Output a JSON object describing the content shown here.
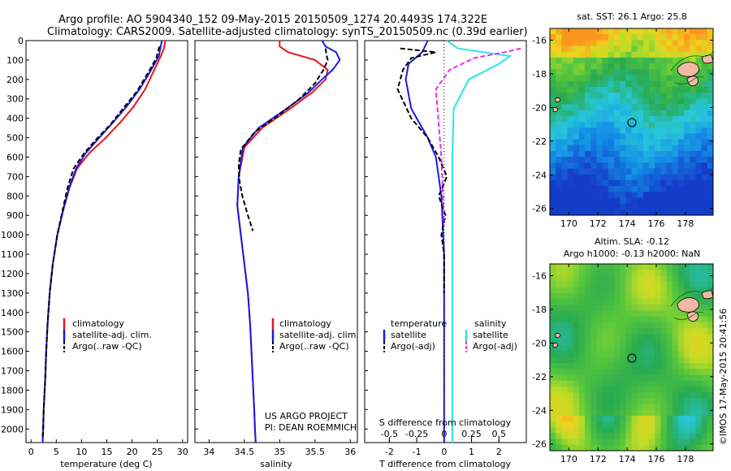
{
  "header": {
    "line1": "Argo profile: AO 5904340_152 09-May-2015 20150509_1274 20.4493S 174.322E",
    "line2": "Climatology: CARS2009. Satellite-adjusted climatology: synTS_20150509.nc (0.39d earlier)"
  },
  "credits": {
    "project": "US ARGO PROJECT",
    "pi": "PI: DEAN ROEMMICH",
    "stamp": "©IMOS 17-May-2015 20:41:56"
  },
  "colors": {
    "climatology": "#e8161b",
    "satellite": "#1a1ae6",
    "argo": "#000000",
    "sal_satellite": "#29e6e6",
    "sal_argo": "#e62ee6"
  },
  "depth_axis": {
    "ylim": [
      2070,
      0
    ],
    "ticks": [
      "0",
      "100",
      "200",
      "300",
      "400",
      "500",
      "600",
      "700",
      "800",
      "900",
      "1000",
      "1100",
      "1200",
      "1300",
      "1400",
      "1500",
      "1600",
      "1700",
      "1800",
      "1900",
      "2000"
    ]
  },
  "chart_data": [
    {
      "type": "line",
      "id": "temperature",
      "xlabel": "temperature (deg C)",
      "xlim": [
        -1,
        31
      ],
      "xticks": [
        "0",
        "5",
        "10",
        "15",
        "20",
        "25",
        "30"
      ],
      "legend": [
        "climatology",
        "satellite-adj. clim.",
        "Argo(..raw -QC)"
      ],
      "series": [
        {
          "name": "climatology",
          "x": [
            26.6,
            26.3,
            25.7,
            24.4,
            22.6,
            20.3,
            17.7,
            14.8,
            11.5,
            9.1,
            7.6,
            6.3,
            5.2,
            4.3,
            3.7,
            3.3,
            3.0,
            2.8,
            2.5,
            2.4,
            2.3
          ],
          "depth": [
            0,
            40,
            80,
            150,
            250,
            340,
            420,
            500,
            580,
            660,
            760,
            880,
            1000,
            1150,
            1300,
            1450,
            1600,
            1750,
            1900,
            2000,
            2070
          ]
        },
        {
          "name": "satellite-adj. clim.",
          "x": [
            25.9,
            25.6,
            25.3,
            23.8,
            21.5,
            18.9,
            16.3,
            13.5,
            10.8,
            8.9,
            7.5,
            6.3,
            5.2,
            4.3,
            3.7,
            3.3,
            3.0,
            2.8,
            2.5,
            2.4,
            2.3
          ],
          "depth": [
            0,
            40,
            80,
            150,
            250,
            340,
            420,
            500,
            580,
            660,
            760,
            880,
            1000,
            1150,
            1300,
            1450,
            1600,
            1750,
            1900,
            2000,
            2070
          ]
        },
        {
          "name": "Argo(..raw -QC)",
          "x": [
            25.4,
            25.2,
            24.8,
            23.3,
            21.0,
            18.2,
            15.8,
            13.2,
            10.5,
            8.4,
            7.2,
            6.2,
            5.2,
            4.3,
            3.7,
            3.3,
            3.0,
            2.8,
            2.5,
            2.4,
            2.3
          ],
          "depth": [
            30,
            50,
            90,
            160,
            260,
            350,
            430,
            500,
            580,
            660,
            760,
            880,
            1000,
            1150,
            1300,
            1450,
            1600,
            1750,
            1900,
            2000,
            2040
          ]
        }
      ]
    },
    {
      "type": "line",
      "id": "salinity",
      "xlabel": "salinity",
      "xlim": [
        33.8,
        36.1
      ],
      "xticks": [
        "34",
        "34.5",
        "35",
        "35.5",
        "36"
      ],
      "legend": [
        "climatology",
        "satellite-adj. clim.",
        "Argo(..raw -QC)"
      ],
      "series": [
        {
          "name": "climatology",
          "x": [
            35.0,
            35.0,
            35.12,
            35.5,
            35.68,
            35.65,
            35.45,
            35.15,
            34.75,
            34.5,
            34.42,
            34.4,
            34.45,
            34.5,
            34.55,
            34.58,
            34.6,
            34.62,
            34.64,
            34.65,
            34.66
          ],
          "depth": [
            0,
            30,
            60,
            100,
            150,
            200,
            270,
            350,
            450,
            550,
            700,
            850,
            1000,
            1150,
            1300,
            1450,
            1600,
            1750,
            1900,
            2000,
            2070
          ]
        },
        {
          "name": "satellite-adj. clim.",
          "x": [
            35.6,
            35.65,
            35.8,
            35.85,
            35.75,
            35.6,
            35.4,
            35.1,
            34.7,
            34.48,
            34.42,
            34.4,
            34.45,
            34.5,
            34.55,
            34.58,
            34.6,
            34.62,
            34.64,
            34.65,
            34.66
          ],
          "depth": [
            0,
            30,
            60,
            100,
            150,
            200,
            270,
            350,
            450,
            550,
            700,
            850,
            1000,
            1150,
            1300,
            1450,
            1600,
            1750,
            1900,
            2000,
            2070
          ]
        },
        {
          "name": "Argo(..raw -QC)",
          "x": [
            35.65,
            35.66,
            35.68,
            35.62,
            35.5,
            35.28,
            35.0,
            34.65,
            34.45,
            34.42,
            34.43,
            34.47,
            34.55,
            34.62
          ],
          "depth": [
            40,
            70,
            100,
            150,
            220,
            300,
            380,
            470,
            560,
            640,
            720,
            800,
            900,
            980
          ]
        }
      ]
    },
    {
      "type": "line",
      "id": "difference",
      "xlabel": "T difference from climatology",
      "xlabel_top": "S difference from climatology",
      "xlim": [
        -2.9,
        3.0
      ],
      "xticks": [
        "-2",
        "-1",
        "0",
        "1",
        "2"
      ],
      "xticks_top": [
        "-0.5",
        "-0.25",
        "0",
        "0.25",
        "0.5"
      ],
      "legend_title_t": "temperature",
      "legend_title_s": "salinity",
      "legend": [
        "satellite",
        "Argo(-adj)",
        "satellite",
        "Argo(-adj)"
      ],
      "series": [
        {
          "name": "satellite",
          "x": [
            -0.6,
            -0.8,
            -1.3,
            -1.4,
            -1.2,
            -0.6,
            -0.3,
            -0.1,
            0,
            0,
            0,
            0
          ],
          "depth": [
            0,
            60,
            120,
            200,
            350,
            500,
            600,
            800,
            1100,
            1500,
            1800,
            2070
          ]
        },
        {
          "name": "Argo(-adj)",
          "x": [
            -1.6,
            -0.3,
            -1.2,
            -1.5,
            -1.7,
            -1.2,
            -0.6,
            -0.2,
            0.1,
            -0.2,
            0.05,
            -0.1,
            0,
            0
          ],
          "depth": [
            40,
            60,
            90,
            150,
            250,
            400,
            500,
            600,
            700,
            800,
            900,
            1000,
            1100,
            1300
          ]
        },
        {
          "name": "satellite",
          "x": [
            0.1,
            0.5,
            2.4,
            2.0,
            0.9,
            0.35,
            0.3,
            0.3,
            0.3,
            0.3
          ],
          "depth": [
            0,
            40,
            80,
            120,
            200,
            350,
            600,
            1000,
            1600,
            2070
          ]
        },
        {
          "name": "Argo(-adj)",
          "x": [
            2.8,
            2.2,
            1.1,
            0.2,
            -0.3,
            -0.1,
            0
          ],
          "depth": [
            40,
            60,
            90,
            150,
            250,
            600,
            950
          ]
        }
      ]
    }
  ],
  "maps": {
    "sst_title": "sat. SST: 26.1  Argo: 25.8",
    "sla_title1": "Altim. SLA: -0.12",
    "sla_title2": "Argo h1000: -0.13 h2000: NaN",
    "lat_ticks": [
      "-16",
      "-18",
      "-20",
      "-22",
      "-24",
      "-26"
    ],
    "lon_ticks": [
      "170",
      "172",
      "174",
      "176",
      "178"
    ]
  }
}
